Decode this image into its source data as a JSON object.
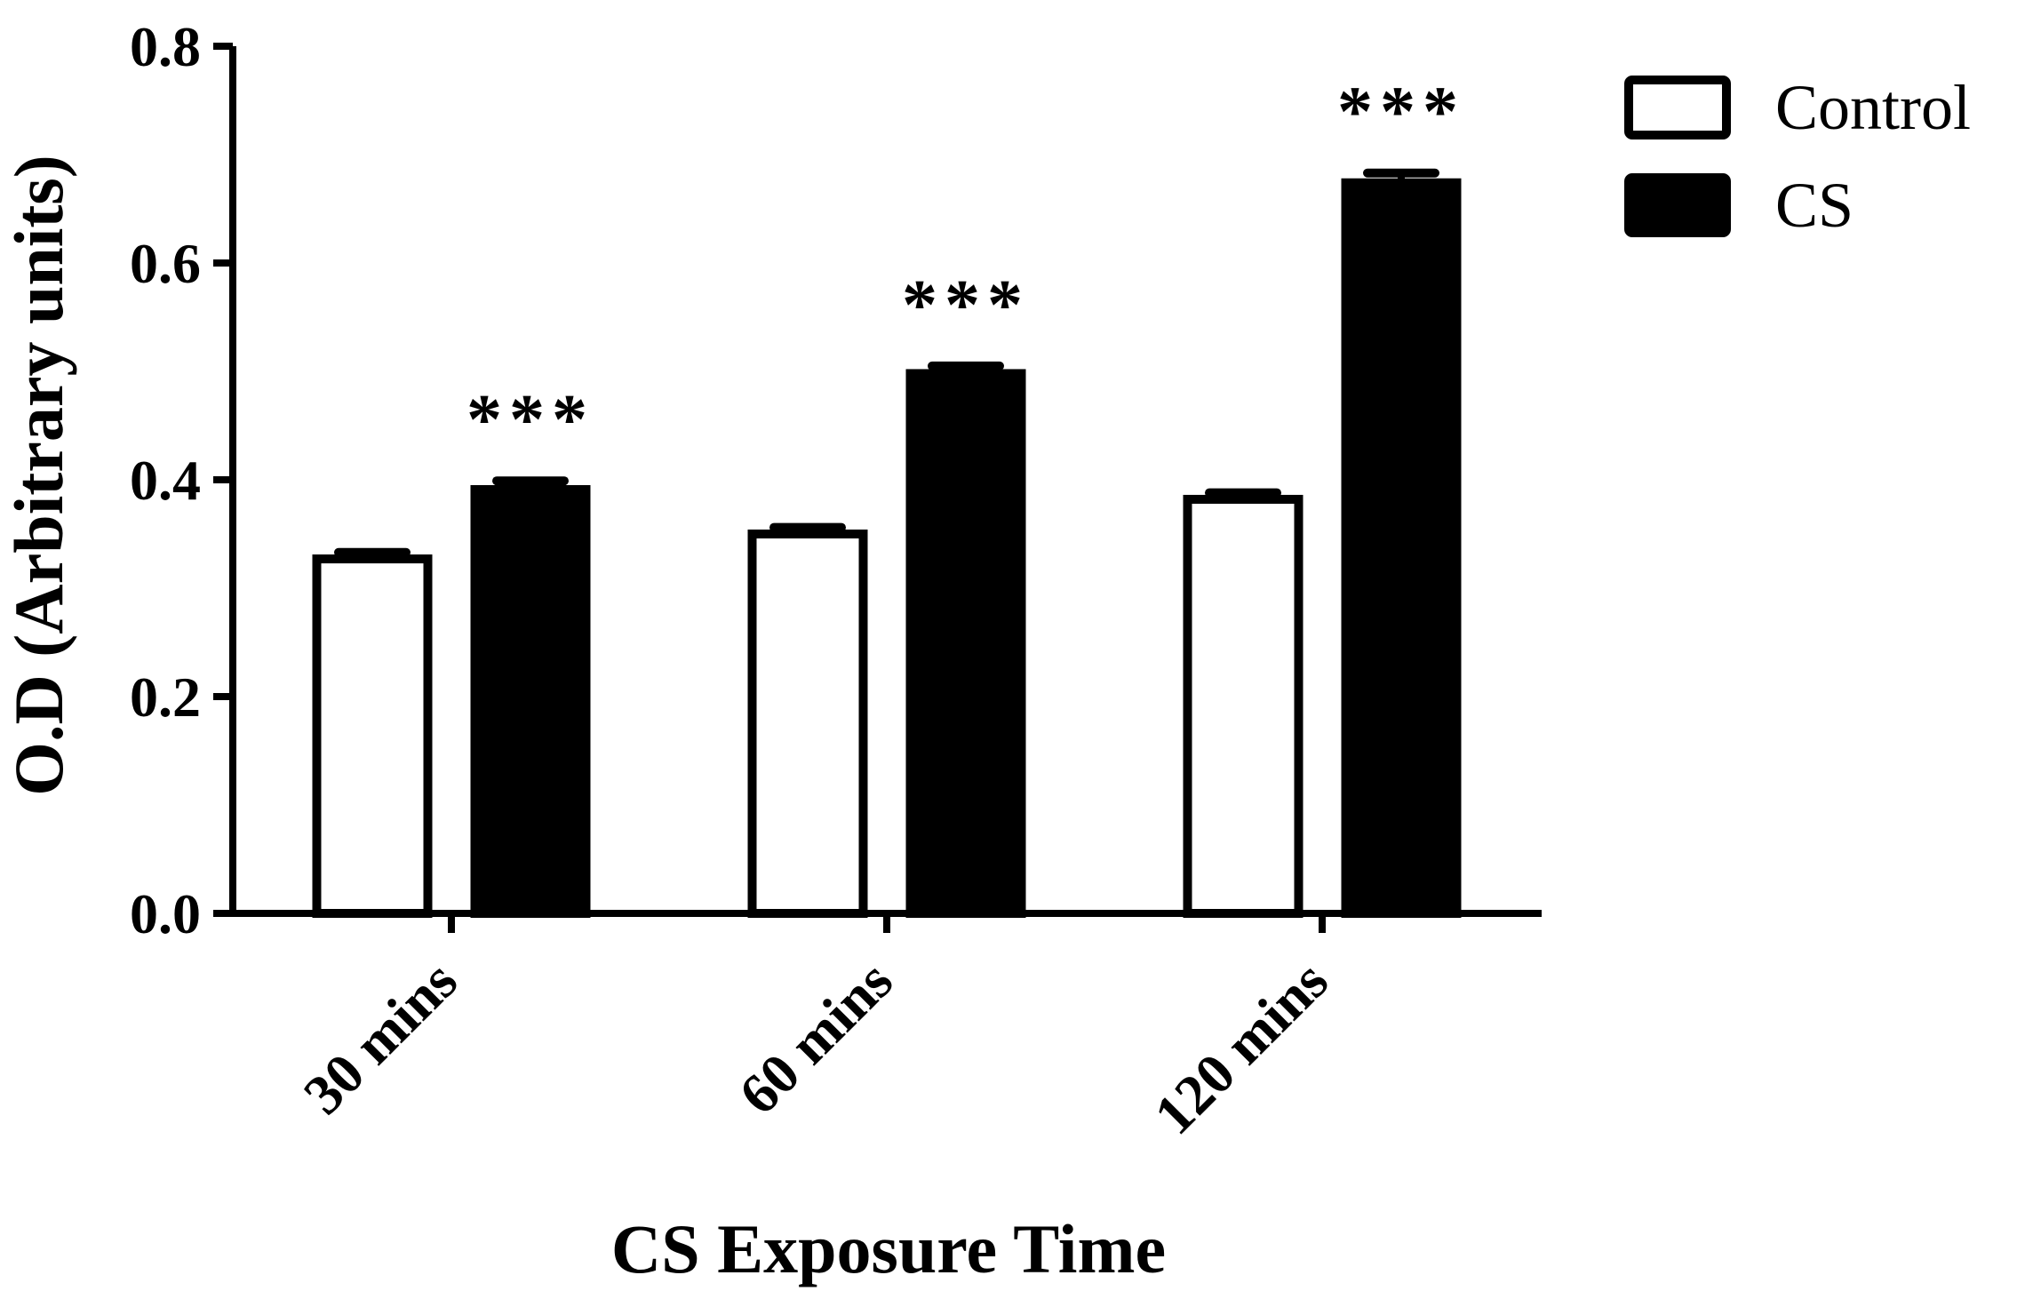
{
  "chart_data": {
    "type": "bar",
    "title": "",
    "xlabel": "CS Exposure Time",
    "ylabel": "O.D (Arbitrary units)",
    "ylim": [
      0,
      0.8
    ],
    "yticks": [
      "0.0",
      "0.2",
      "0.4",
      "0.6",
      "0.8"
    ],
    "categories": [
      "30 mins",
      "60 mins",
      "120 mins"
    ],
    "series": [
      {
        "name": "Control",
        "values": [
          0.327,
          0.35,
          0.382
        ],
        "errors": [
          0.006,
          0.006,
          0.006
        ],
        "color": "#ffffff"
      },
      {
        "name": "CS",
        "values": [
          0.391,
          0.498,
          0.674
        ],
        "errors": [
          0.008,
          0.007,
          0.009
        ],
        "color": "#000000",
        "annotations": [
          "***",
          "***",
          "***"
        ]
      }
    ],
    "legend_position": "top-right",
    "grid": false
  }
}
